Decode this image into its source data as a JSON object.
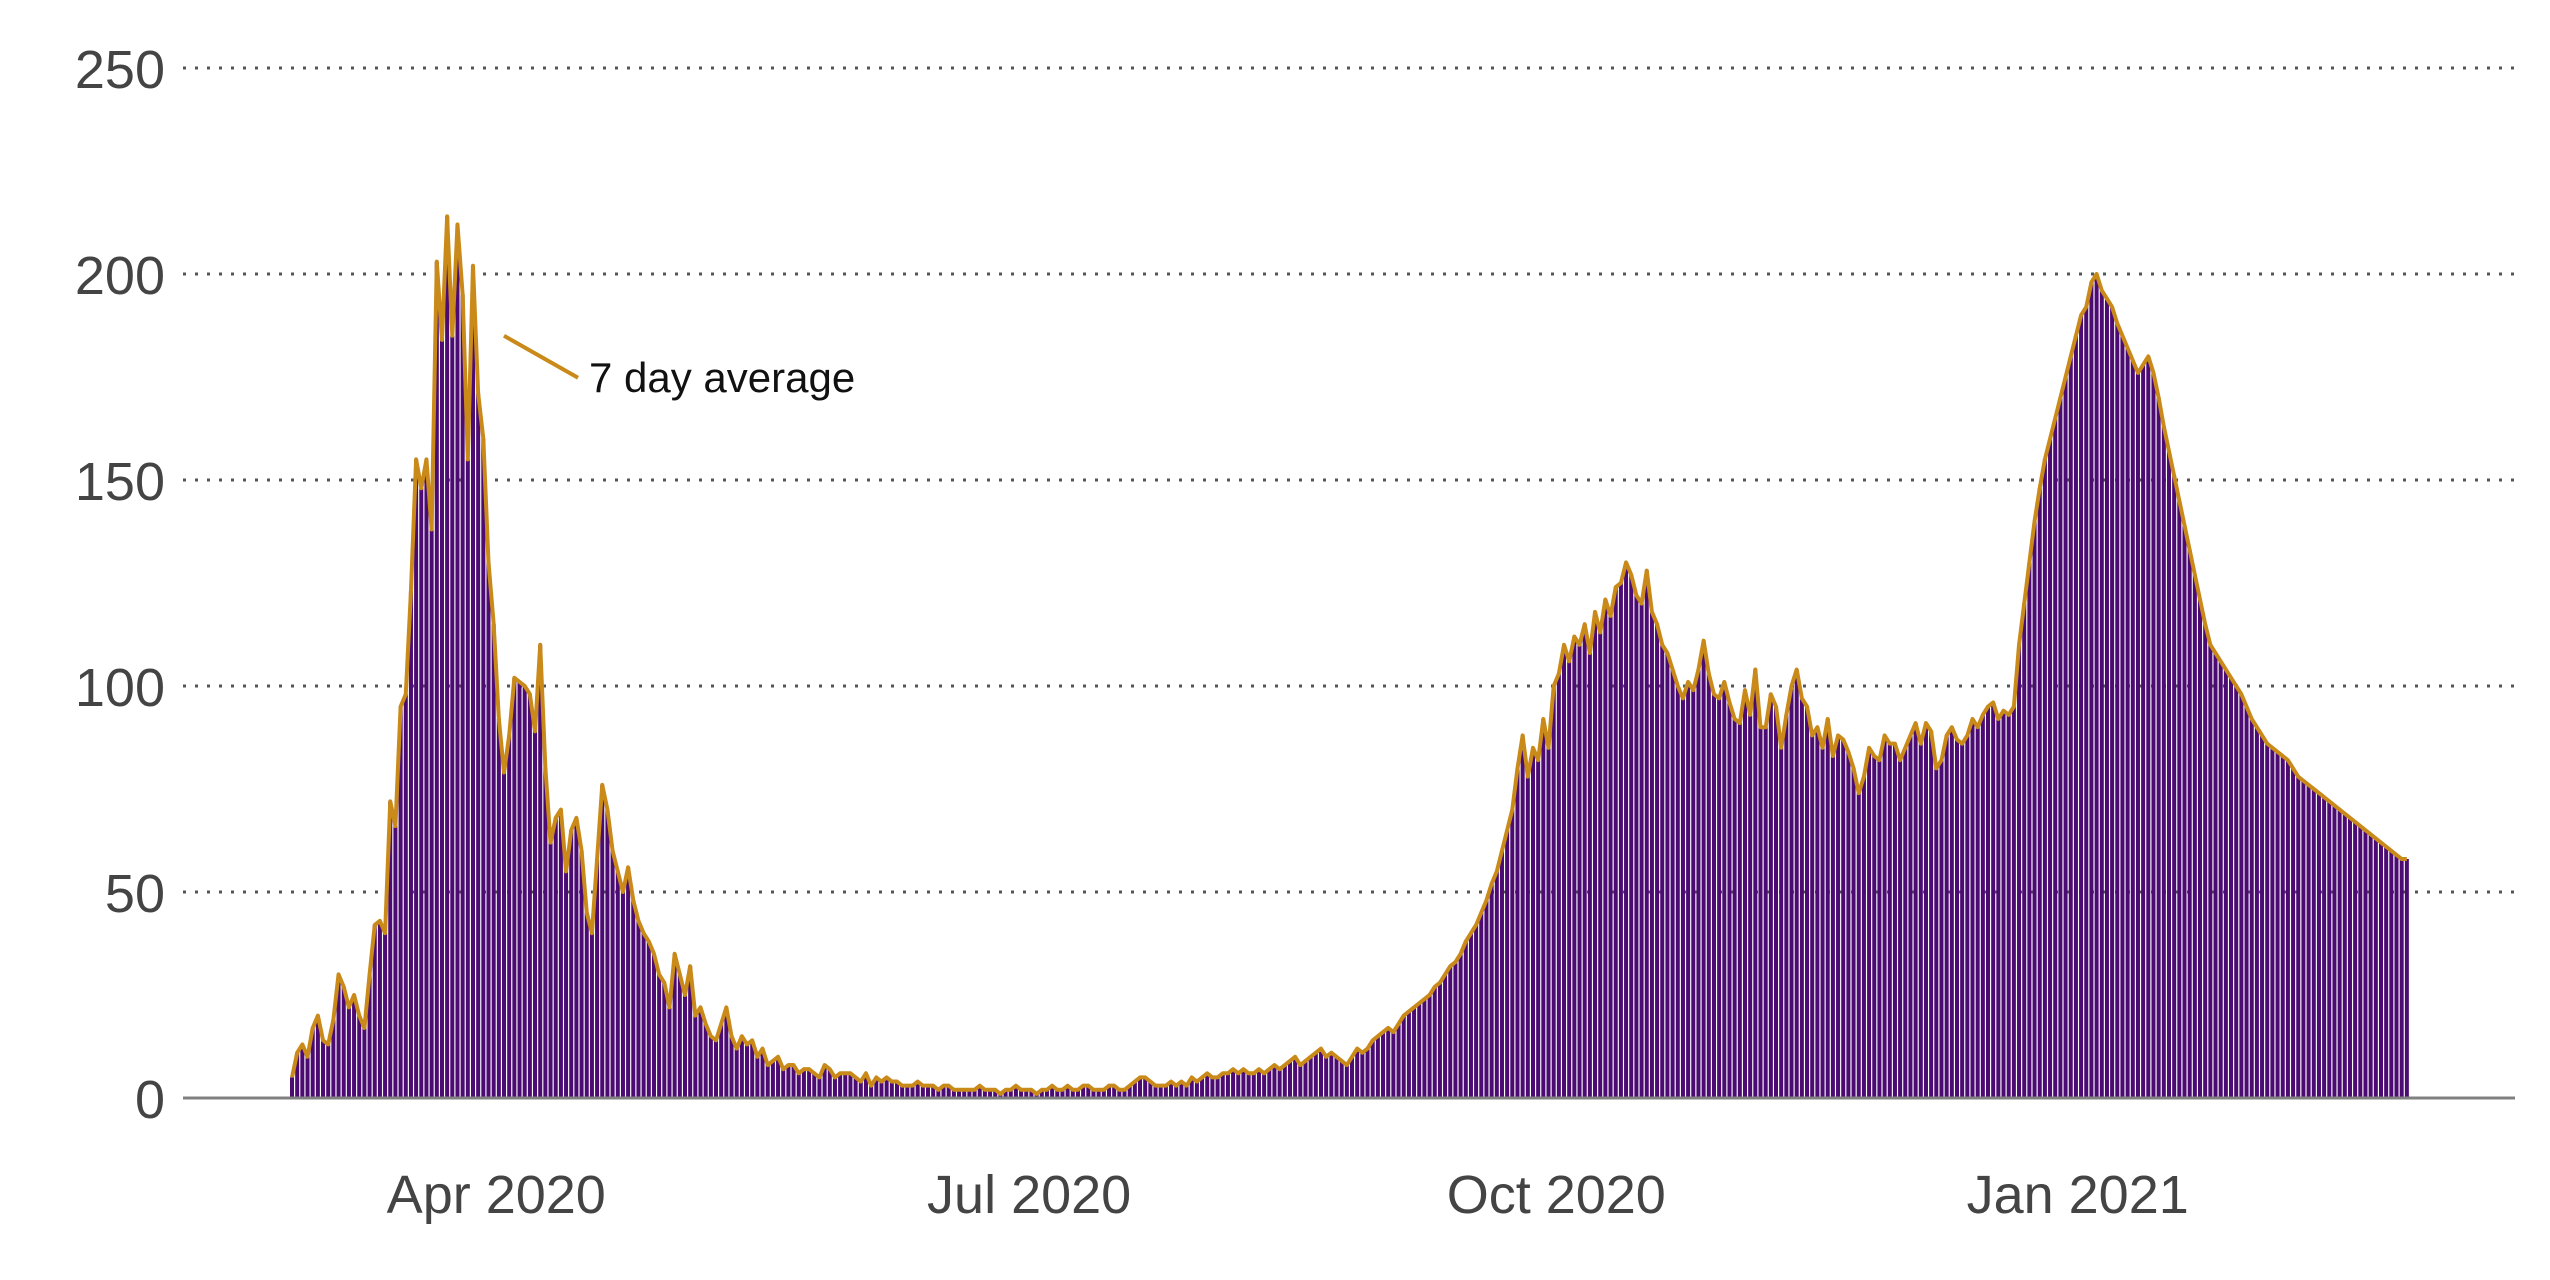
{
  "chart_data": {
    "type": "bar",
    "xlabel": "",
    "ylabel": "",
    "ylim": [
      0,
      250
    ],
    "yticks": [
      0,
      50,
      100,
      150,
      200,
      250
    ],
    "x_range": [
      "2020-03-01",
      "2021-03-06"
    ],
    "grid": true,
    "start_date": "2020-03-01",
    "xtick_labels": [
      {
        "label": "Apr 2020",
        "date": "2020-04-06"
      },
      {
        "label": "Jul 2020",
        "date": "2020-07-08"
      },
      {
        "label": "Oct 2020",
        "date": "2020-10-08"
      },
      {
        "label": "Jan 2021",
        "date": "2021-01-07"
      }
    ],
    "annotation": {
      "text": "7 day average",
      "date": "2020-04-11",
      "value": 185
    },
    "colors": {
      "bars": "#4b0b73",
      "line": "#c98a1a",
      "grid": "#555555",
      "axis": "#808080",
      "tick_text": "#444444"
    },
    "series": [
      {
        "kind": "bar",
        "values": [
          5,
          11,
          13,
          10,
          17,
          20,
          14,
          13,
          19,
          30,
          27,
          22,
          25,
          20,
          17,
          30,
          42,
          43,
          40,
          72,
          66,
          95,
          98,
          123,
          155,
          148,
          155,
          138,
          203,
          184,
          214,
          185,
          212,
          195,
          155,
          202,
          171,
          160,
          130,
          115,
          92,
          79,
          88,
          102,
          101,
          100,
          98,
          89,
          110,
          80,
          62,
          68,
          70,
          55,
          65,
          68,
          60,
          45,
          40,
          58,
          76,
          70,
          60,
          55,
          50,
          56,
          48,
          43,
          40,
          38,
          35,
          30,
          28,
          22,
          35,
          30,
          25,
          32,
          20,
          22,
          18,
          15,
          14,
          18,
          22,
          15,
          12,
          15,
          13,
          14,
          10,
          12,
          8,
          9,
          10,
          7,
          8,
          8,
          6,
          7,
          7,
          6,
          5,
          8,
          7,
          5,
          6,
          6,
          6,
          5,
          4,
          6,
          3,
          5,
          4,
          5,
          4,
          4,
          3,
          3,
          3,
          4,
          3,
          3,
          3,
          2,
          3,
          3,
          2,
          2,
          2,
          2,
          2,
          3,
          2,
          2,
          2,
          1,
          2,
          2,
          3,
          2,
          2,
          2,
          1,
          2,
          2,
          3,
          2,
          2,
          3,
          2,
          2,
          3,
          3,
          2,
          2,
          2,
          3,
          3,
          2,
          2,
          3,
          4,
          5,
          5,
          4,
          3,
          3,
          3,
          4,
          3,
          4,
          3,
          5,
          4,
          5,
          6,
          5,
          5,
          6,
          6,
          7,
          6,
          7,
          6,
          6,
          7,
          6,
          7,
          8,
          7,
          8,
          9,
          10,
          8,
          9,
          10,
          11,
          12,
          10,
          11,
          10,
          9,
          8,
          10,
          12,
          11,
          12,
          14,
          15,
          16,
          17,
          16,
          18,
          20,
          21,
          22,
          23,
          24,
          25,
          27,
          28,
          30,
          32,
          33,
          35,
          38,
          40,
          42,
          45,
          48,
          52,
          55,
          60,
          65,
          70,
          80,
          88,
          78,
          85,
          82,
          92,
          85,
          100,
          103,
          110,
          106,
          112,
          110,
          115,
          108,
          118,
          113,
          121,
          117,
          124,
          125,
          130,
          127,
          122,
          120,
          128,
          118,
          115,
          110,
          108,
          104,
          100,
          97,
          101,
          99,
          104,
          111,
          103,
          98,
          97,
          101,
          96,
          92,
          91,
          99,
          93,
          104,
          90,
          90,
          98,
          95,
          85,
          93,
          100,
          104,
          97,
          95,
          88,
          90,
          85,
          92,
          83,
          88,
          87,
          84,
          80,
          74,
          78,
          85,
          83,
          82,
          88,
          86,
          86,
          82,
          85,
          88,
          91,
          86,
          91,
          89,
          80,
          82,
          88,
          90,
          87,
          86,
          88,
          92,
          90,
          93,
          95,
          96,
          92,
          94,
          93,
          95,
          110,
          120,
          130,
          140,
          148,
          155,
          160,
          165,
          170,
          175,
          180,
          185,
          190,
          192,
          198,
          200,
          196,
          194,
          192,
          188,
          185,
          182,
          179,
          176,
          178,
          180,
          176,
          170,
          163,
          157,
          151,
          145,
          139,
          133,
          127,
          121,
          115,
          110,
          108,
          106,
          104,
          102,
          100,
          98,
          95,
          92,
          90,
          88,
          86,
          85,
          84,
          83,
          82,
          80,
          78,
          77,
          76,
          75,
          74,
          73,
          72,
          71,
          70,
          69,
          68,
          67,
          66,
          65,
          64,
          63,
          62,
          61,
          60,
          59,
          58,
          58
        ]
      },
      {
        "name": "7 day average",
        "kind": "line",
        "values": [
          5,
          11,
          13,
          10,
          17,
          20,
          14,
          13,
          19,
          30,
          27,
          22,
          25,
          20,
          17,
          30,
          42,
          43,
          40,
          72,
          66,
          95,
          98,
          123,
          155,
          148,
          155,
          138,
          203,
          184,
          214,
          185,
          212,
          195,
          155,
          202,
          171,
          160,
          130,
          115,
          92,
          79,
          88,
          102,
          101,
          100,
          98,
          89,
          110,
          80,
          62,
          68,
          70,
          55,
          65,
          68,
          60,
          45,
          40,
          58,
          76,
          70,
          60,
          55,
          50,
          56,
          48,
          43,
          40,
          38,
          35,
          30,
          28,
          22,
          35,
          30,
          25,
          32,
          20,
          22,
          18,
          15,
          14,
          18,
          22,
          15,
          12,
          15,
          13,
          14,
          10,
          12,
          8,
          9,
          10,
          7,
          8,
          8,
          6,
          7,
          7,
          6,
          5,
          8,
          7,
          5,
          6,
          6,
          6,
          5,
          4,
          6,
          3,
          5,
          4,
          5,
          4,
          4,
          3,
          3,
          3,
          4,
          3,
          3,
          3,
          2,
          3,
          3,
          2,
          2,
          2,
          2,
          2,
          3,
          2,
          2,
          2,
          1,
          2,
          2,
          3,
          2,
          2,
          2,
          1,
          2,
          2,
          3,
          2,
          2,
          3,
          2,
          2,
          3,
          3,
          2,
          2,
          2,
          3,
          3,
          2,
          2,
          3,
          4,
          5,
          5,
          4,
          3,
          3,
          3,
          4,
          3,
          4,
          3,
          5,
          4,
          5,
          6,
          5,
          5,
          6,
          6,
          7,
          6,
          7,
          6,
          6,
          7,
          6,
          7,
          8,
          7,
          8,
          9,
          10,
          8,
          9,
          10,
          11,
          12,
          10,
          11,
          10,
          9,
          8,
          10,
          12,
          11,
          12,
          14,
          15,
          16,
          17,
          16,
          18,
          20,
          21,
          22,
          23,
          24,
          25,
          27,
          28,
          30,
          32,
          33,
          35,
          38,
          40,
          42,
          45,
          48,
          52,
          55,
          60,
          65,
          70,
          80,
          88,
          78,
          85,
          82,
          92,
          85,
          100,
          103,
          110,
          106,
          112,
          110,
          115,
          108,
          118,
          113,
          121,
          117,
          124,
          125,
          130,
          127,
          122,
          120,
          128,
          118,
          115,
          110,
          108,
          104,
          100,
          97,
          101,
          99,
          104,
          111,
          103,
          98,
          97,
          101,
          96,
          92,
          91,
          99,
          93,
          104,
          90,
          90,
          98,
          95,
          85,
          93,
          100,
          104,
          97,
          95,
          88,
          90,
          85,
          92,
          83,
          88,
          87,
          84,
          80,
          74,
          78,
          85,
          83,
          82,
          88,
          86,
          86,
          82,
          85,
          88,
          91,
          86,
          91,
          89,
          80,
          82,
          88,
          90,
          87,
          86,
          88,
          92,
          90,
          93,
          95,
          96,
          92,
          94,
          93,
          95,
          110,
          120,
          130,
          140,
          148,
          155,
          160,
          165,
          170,
          175,
          180,
          185,
          190,
          192,
          198,
          200,
          196,
          194,
          192,
          188,
          185,
          182,
          179,
          176,
          178,
          180,
          176,
          170,
          163,
          157,
          151,
          145,
          139,
          133,
          127,
          121,
          115,
          110,
          108,
          106,
          104,
          102,
          100,
          98,
          95,
          92,
          90,
          88,
          86,
          85,
          84,
          83,
          82,
          80,
          78,
          77,
          76,
          75,
          74,
          73,
          72,
          71,
          70,
          69,
          68,
          67,
          66,
          65,
          64,
          63,
          62,
          61,
          60,
          59,
          58,
          58
        ]
      }
    ]
  }
}
